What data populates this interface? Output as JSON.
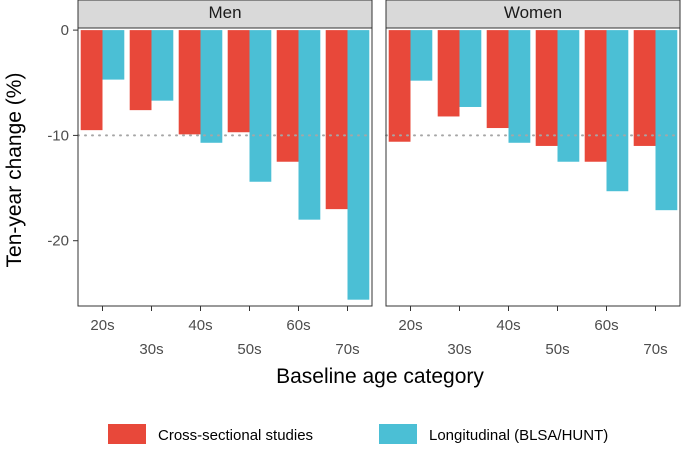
{
  "chart_data": {
    "type": "bar",
    "xlabel": "Baseline age category",
    "ylabel": "Ten-year change (%)",
    "categories": [
      "20s",
      "30s",
      "40s",
      "50s",
      "60s",
      "70s"
    ],
    "ylim": [
      -26.2,
      0.2
    ],
    "yticks": [
      0,
      -10,
      -20
    ],
    "reference_line": -10,
    "legend_position": "bottom",
    "grid": false,
    "series_colors": [
      "#e8483a",
      "#4bbfd5"
    ],
    "legend": [
      "Cross-sectional studies",
      "Longitudinal (BLSA/HUNT)"
    ],
    "panels": [
      {
        "strip": "Men",
        "series": [
          {
            "values": [
              -9.5,
              -7.6,
              -9.9,
              -9.7,
              -12.5,
              -17.0
            ]
          },
          {
            "values": [
              -4.7,
              -6.7,
              -10.7,
              -14.4,
              -18.0,
              -25.6
            ]
          }
        ]
      },
      {
        "strip": "Women",
        "series": [
          {
            "values": [
              -10.6,
              -8.2,
              -9.3,
              -11.0,
              -12.5,
              -11.0
            ]
          },
          {
            "values": [
              -4.8,
              -7.3,
              -10.7,
              -12.5,
              -15.3,
              -17.1
            ]
          }
        ]
      }
    ]
  }
}
